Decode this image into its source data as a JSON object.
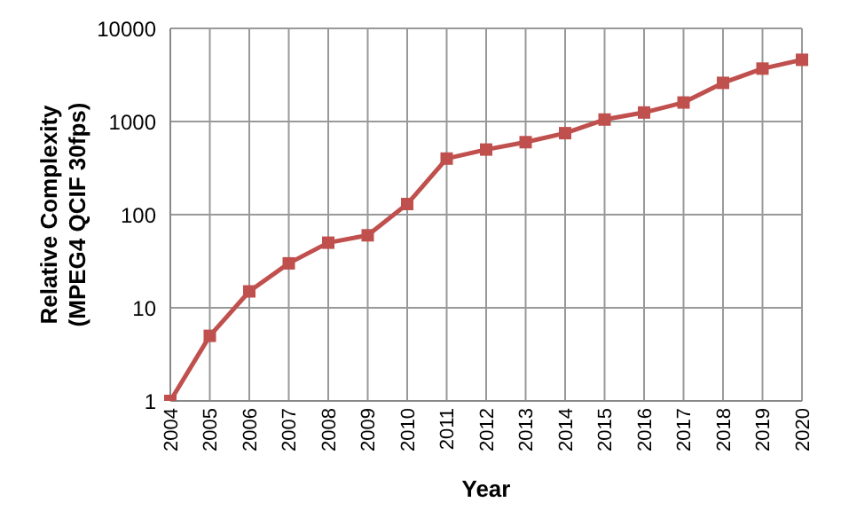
{
  "chart_data": {
    "type": "line",
    "xlabel": "Year",
    "ylabel": "Relative Complexity\n(MPEG4 QCIF 30fps)",
    "categories": [
      "2004",
      "2005",
      "2006",
      "2007",
      "2008",
      "2009",
      "2010",
      "2011",
      "2012",
      "2013",
      "2014",
      "2015",
      "2016",
      "2017",
      "2018",
      "2019",
      "2020"
    ],
    "series": [
      {
        "color": "#c0504d",
        "values": [
          1,
          5,
          15,
          30,
          50,
          60,
          130,
          400,
          500,
          600,
          750,
          1050,
          1250,
          1600,
          2600,
          3700,
          4600
        ]
      }
    ],
    "log": true,
    "ylim": [
      1,
      10000
    ],
    "yticks": [
      1,
      10,
      100,
      1000,
      10000
    ],
    "grid": true,
    "marker": "square",
    "line_style": "solid",
    "legend": false
  }
}
